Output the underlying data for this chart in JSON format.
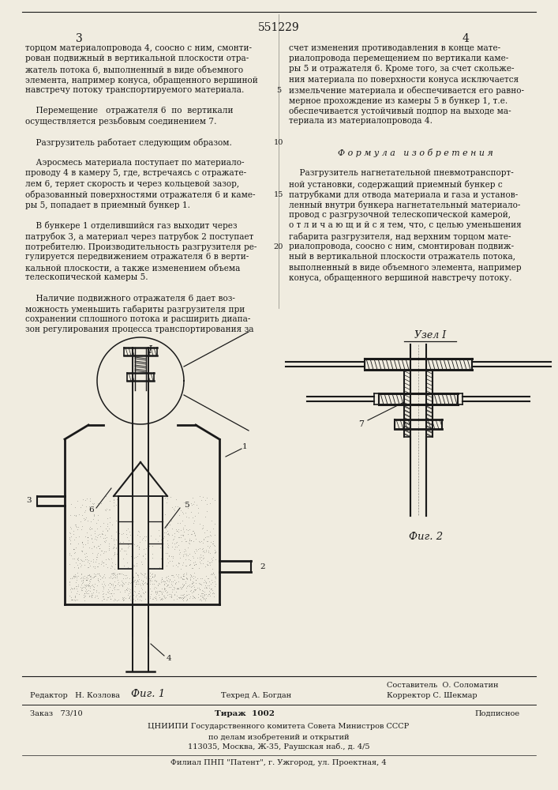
{
  "patent_number": "551229",
  "page_left": "3",
  "page_right": "4",
  "background_color": "#f0ece0",
  "text_color": "#1a1a1a",
  "left_column_lines": [
    "торцом материалопровода 4, соосно с ним, смонти-",
    "рован подвижный в вертикальной плоскости отра-",
    "жатель потока 6, выполненный в виде объемного",
    "элемента, например конуса, обращенного вершиной",
    "навстречу потоку транспортируемого материала.",
    "",
    "    Перемещение   отражателя 6  по  вертикали",
    "осуществляется резьбовым соединением 7.",
    "",
    "    Разгрузитель работает следующим образом.",
    "",
    "    Аэросмесь материала поступает по материало-",
    "проводу 4 в камеру 5, где, встречаясь с отражате-",
    "лем 6, теряет скорость и через кольцевой зазор,",
    "образованный поверхностями отражателя 6 и каме-",
    "ры 5, попадает в приемный бункер 1.",
    "",
    "    В бункере 1 отделившийся газ выходит через",
    "патрубок 3, а материал через патрубок 2 поступает",
    "потребителю. Производительность разгрузителя ре-",
    "гулируется передвижением отражателя 6 в верти-",
    "кальной плоскости, а также изменением объема",
    "телескопической камеры 5.",
    "",
    "    Наличие подвижного отражателя 6 дает воз-",
    "можность уменьшить габариты разгрузителя при",
    "сохранении сплошного потока и расширить диапа-",
    "зон регулирования процесса транспортирования за"
  ],
  "right_column_lines": [
    "счет изменения противодавления в конце мате-",
    "риалопровода перемещением по вертикали каме-",
    "ры 5 и отражателя 6. Кроме того, за счет скольже-",
    "ния материала по поверхности конуса исключается",
    "измельчение материала и обеспечивается его равно-",
    "мерное прохождение из камеры 5 в бункер 1, т.е.",
    "обеспечивается устойчивый подпор на выходе ма-",
    "териала из материалопровода 4.",
    "",
    "",
    "    Ф о р м у л а   и з о б р е т е н и я",
    "",
    "    Разгрузитель нагнетательной пневмотранспорт-",
    "ной установки, содержащий приемный бункер с",
    "патрубками для отвода материала и газа и установ-",
    "ленный внутри бункера нагнетательный материало-",
    "провод с разгрузочной телескопической камерой,",
    "о т л и ч а ю щ и й с я тем, что, с целью уменьшения",
    "габарита разгрузителя, над верхним торцом мате-",
    "риалопровода, соосно с ним, смонтирован подвиж-",
    "ный в вертикальной плоскости отражатель потока,",
    "выполненный в виде объемного элемента, например",
    "конуса, обращенного вершиной навстречу потоку."
  ],
  "line_numbers": [
    {
      "num": "5",
      "row": 4
    },
    {
      "num": "10",
      "row": 9
    },
    {
      "num": "15",
      "row": 14
    },
    {
      "num": "20",
      "row": 19
    }
  ],
  "fig1_label": "Фиг. 1",
  "fig2_label": "Фиг. 2",
  "uzel_label": "Узел I",
  "credit_sostavitel": "Составитель  О. Соломатин",
  "credit_redaktor": "Редактор   Н. Козлова",
  "credit_tehred": "Техред А. Богдан",
  "credit_korrektor": "Корректор С. Шекмар",
  "credit_zakaz": "Заказ   73/10",
  "credit_tirazh": "Тираж  1002",
  "credit_podpisnoe": "Подписное",
  "credit_cnipi1": "ЦНИИПИ Государственного комитета Совета Министров СССР",
  "credit_cnipi2": "по делам изобретений и открытий",
  "credit_cnipi3": "113035, Москва, Ж-35, Раушская наб., д. 4/5",
  "credit_filial": "Филиал ПНП \"Патент\", г. Ужгород, ул. Проектная, 4"
}
